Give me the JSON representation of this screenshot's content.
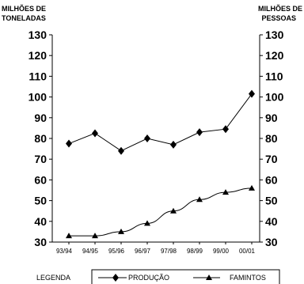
{
  "chart_data": {
    "type": "line",
    "title": "",
    "ylabel_left": [
      "MILHÕES DE",
      "TONELADAS"
    ],
    "ylabel_right": [
      "MILHÕES DE",
      "PESSOAS"
    ],
    "categories": [
      "93/94",
      "94/95",
      "95/96",
      "96/97",
      "97/98",
      "98/99",
      "99/00",
      "00/01"
    ],
    "y_ticks": [
      30,
      40,
      50,
      60,
      70,
      80,
      90,
      100,
      110,
      120,
      130
    ],
    "ylim": [
      30,
      130
    ],
    "legend_title": "LEGENDA",
    "legend_placement": "bottom",
    "grid": false,
    "series": [
      {
        "name": "PRODUÇÃO",
        "marker": "diamond",
        "color": "#000000",
        "values": [
          77.5,
          82.5,
          74,
          80,
          77,
          83,
          84.5,
          101.5
        ]
      },
      {
        "name": "FAMINTOS",
        "marker": "triangle",
        "color": "#000000",
        "values": [
          33,
          33,
          35,
          39,
          45,
          50.5,
          54,
          56
        ]
      }
    ]
  }
}
